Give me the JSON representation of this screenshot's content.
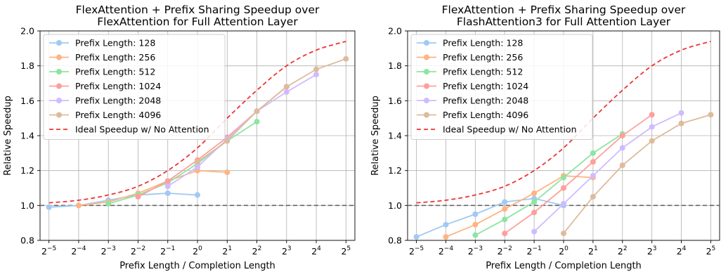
{
  "chart_data": [
    {
      "type": "line",
      "title_lines": [
        "FlexAttention + Prefix Sharing Speedup over",
        "FlexAttention for Full Attention Layer"
      ],
      "xlabel": "Prefix Length / Completion Length",
      "ylabel": "Relative Speedup",
      "x_scale": "log2",
      "x_ticks": [
        -5,
        -4,
        -3,
        -2,
        -1,
        0,
        1,
        2,
        3,
        4,
        5
      ],
      "xlim_exp": [
        -5.3,
        5.3
      ],
      "ylim": [
        0.8,
        2.0
      ],
      "y_ticks": [
        "0.8",
        "1.0",
        "1.2",
        "1.4",
        "1.6",
        "1.8",
        "2.0"
      ],
      "grid": true,
      "legend_position": "top-left",
      "baseline": 1.0,
      "series": [
        {
          "name": "Prefix Length: 128",
          "color": "#a1c9f4",
          "x_exp": [
            -5,
            -4,
            -3,
            -2,
            -1,
            0
          ],
          "y": [
            0.99,
            1.0,
            1.03,
            1.06,
            1.07,
            1.06
          ]
        },
        {
          "name": "Prefix Length: 256",
          "color": "#ffb482",
          "x_exp": [
            -4,
            -3,
            -2,
            -1,
            0,
            1
          ],
          "y": [
            1.0,
            1.02,
            1.07,
            1.14,
            1.2,
            1.19
          ]
        },
        {
          "name": "Prefix Length: 512",
          "color": "#8de5a1",
          "x_exp": [
            -3,
            -2,
            -1,
            0,
            1,
            2
          ],
          "y": [
            1.01,
            1.06,
            1.13,
            1.24,
            1.37,
            1.48
          ]
        },
        {
          "name": "Prefix Length: 1024",
          "color": "#ff9f9b",
          "x_exp": [
            -2,
            -1,
            0,
            1,
            2,
            3
          ],
          "y": [
            1.05,
            1.14,
            1.26,
            1.39,
            1.54,
            1.68
          ]
        },
        {
          "name": "Prefix Length: 2048",
          "color": "#d0bbff",
          "x_exp": [
            -1,
            0,
            1,
            2,
            3,
            4
          ],
          "y": [
            1.11,
            1.22,
            1.38,
            1.54,
            1.65,
            1.75
          ]
        },
        {
          "name": "Prefix Length: 4096",
          "color": "#debb9b",
          "x_exp": [
            0,
            1,
            2,
            3,
            4,
            5
          ],
          "y": [
            1.25,
            1.37,
            1.54,
            1.68,
            1.78,
            1.84
          ]
        }
      ],
      "ideal": {
        "name": "Ideal Speedup w/ No Attention",
        "color": "#ee3333",
        "x_exp": [
          -5,
          -4,
          -3,
          -2,
          -1,
          0,
          1,
          2,
          3,
          4,
          5
        ],
        "y": [
          1.015,
          1.03,
          1.06,
          1.11,
          1.2,
          1.33,
          1.5,
          1.66,
          1.8,
          1.89,
          1.94
        ]
      }
    },
    {
      "type": "line",
      "title_lines": [
        "FlexAttention + Prefix Sharing Speedup over",
        "FlashAttention3 for Full Attention Layer"
      ],
      "xlabel": "Prefix Length / Completion Length",
      "ylabel": "Relative Speedup",
      "x_scale": "log2",
      "x_ticks": [
        -5,
        -4,
        -3,
        -2,
        -1,
        0,
        1,
        2,
        3,
        4,
        5
      ],
      "xlim_exp": [
        -5.3,
        5.3
      ],
      "ylim": [
        0.8,
        2.0
      ],
      "y_ticks": [
        "0.8",
        "1.0",
        "1.2",
        "1.4",
        "1.6",
        "1.8",
        "2.0"
      ],
      "grid": true,
      "legend_position": "top-left",
      "baseline": 1.0,
      "series": [
        {
          "name": "Prefix Length: 128",
          "color": "#a1c9f4",
          "x_exp": [
            -5,
            -4,
            -3,
            -2,
            -1,
            0
          ],
          "y": [
            0.82,
            0.89,
            0.95,
            1.02,
            1.04,
            1.0
          ]
        },
        {
          "name": "Prefix Length: 256",
          "color": "#ffb482",
          "x_exp": [
            -4,
            -3,
            -2,
            -1,
            0,
            1
          ],
          "y": [
            0.82,
            0.89,
            0.98,
            1.07,
            1.17,
            1.16
          ]
        },
        {
          "name": "Prefix Length: 512",
          "color": "#8de5a1",
          "x_exp": [
            -3,
            -2,
            -1,
            0,
            1,
            2
          ],
          "y": [
            0.83,
            0.92,
            1.02,
            1.16,
            1.3,
            1.41
          ]
        },
        {
          "name": "Prefix Length: 1024",
          "color": "#ff9f9b",
          "x_exp": [
            -2,
            -1,
            0,
            1,
            2,
            3
          ],
          "y": [
            0.84,
            0.96,
            1.1,
            1.25,
            1.4,
            1.52
          ]
        },
        {
          "name": "Prefix Length: 2048",
          "color": "#d0bbff",
          "x_exp": [
            -1,
            0,
            1,
            2,
            3,
            4
          ],
          "y": [
            0.85,
            1.01,
            1.17,
            1.33,
            1.45,
            1.53
          ]
        },
        {
          "name": "Prefix Length: 4096",
          "color": "#debb9b",
          "x_exp": [
            0,
            1,
            2,
            3,
            4,
            5
          ],
          "y": [
            0.84,
            1.05,
            1.23,
            1.37,
            1.47,
            1.52
          ]
        }
      ],
      "ideal": {
        "name": "Ideal Speedup w/ No Attention",
        "color": "#ee3333",
        "x_exp": [
          -5,
          -4,
          -3,
          -2,
          -1,
          0,
          1,
          2,
          3,
          4,
          5
        ],
        "y": [
          1.015,
          1.03,
          1.06,
          1.11,
          1.2,
          1.33,
          1.5,
          1.66,
          1.8,
          1.89,
          1.94
        ]
      }
    }
  ]
}
